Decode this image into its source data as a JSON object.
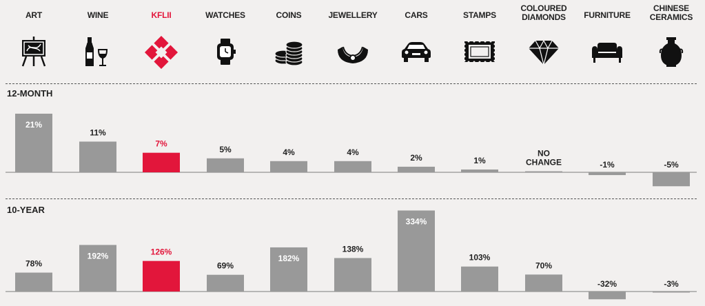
{
  "categories": [
    {
      "label": "ART",
      "icon": "art-easel-icon"
    },
    {
      "label": "WINE",
      "icon": "wine-bottle-icon"
    },
    {
      "label": "KFLII",
      "icon": "kflii-logo-icon"
    },
    {
      "label": "WATCHES",
      "icon": "watch-icon"
    },
    {
      "label": "COINS",
      "icon": "coins-icon"
    },
    {
      "label": "JEWELLERY",
      "icon": "necklace-icon"
    },
    {
      "label": "CARS",
      "icon": "car-icon"
    },
    {
      "label": "STAMPS",
      "icon": "stamp-icon"
    },
    {
      "label": "COLOURED DIAMONDS",
      "icon": "diamond-icon"
    },
    {
      "label": "FURNITURE",
      "icon": "sofa-icon"
    },
    {
      "label": "CHINESE CERAMICS",
      "icon": "vase-icon"
    }
  ],
  "colors": {
    "bar": "#999999",
    "highlight": "#e2163b",
    "text": "#222222",
    "inner_label": "#ffffff",
    "background": "#f2f0ef"
  },
  "chart_data": [
    {
      "type": "bar",
      "title": "12-MONTH",
      "categories": [
        "ART",
        "WINE",
        "KFLII",
        "WATCHES",
        "COINS",
        "JEWELLERY",
        "CARS",
        "STAMPS",
        "COLOURED DIAMONDS",
        "FURNITURE",
        "CHINESE CERAMICS"
      ],
      "values": [
        21,
        11,
        7,
        5,
        4,
        4,
        2,
        1,
        0,
        -1,
        -5
      ],
      "labels": [
        "21%",
        "11%",
        "7%",
        "5%",
        "4%",
        "4%",
        "2%",
        "1%",
        "NO CHANGE",
        "-1%",
        "-5%"
      ],
      "highlight": "KFLII",
      "ylim": [
        -7,
        22
      ]
    },
    {
      "type": "bar",
      "title": "10-YEAR",
      "categories": [
        "ART",
        "WINE",
        "KFLII",
        "WATCHES",
        "COINS",
        "JEWELLERY",
        "CARS",
        "STAMPS",
        "COLOURED DIAMONDS",
        "FURNITURE",
        "CHINESE CERAMICS"
      ],
      "values": [
        78,
        192,
        126,
        69,
        182,
        138,
        334,
        103,
        70,
        -32,
        -3
      ],
      "labels": [
        "78%",
        "192%",
        "126%",
        "69%",
        "182%",
        "138%",
        "334%",
        "103%",
        "70%",
        "-32%",
        "-3%"
      ],
      "highlight": "KFLII",
      "ylim": [
        -45,
        340
      ]
    }
  ]
}
